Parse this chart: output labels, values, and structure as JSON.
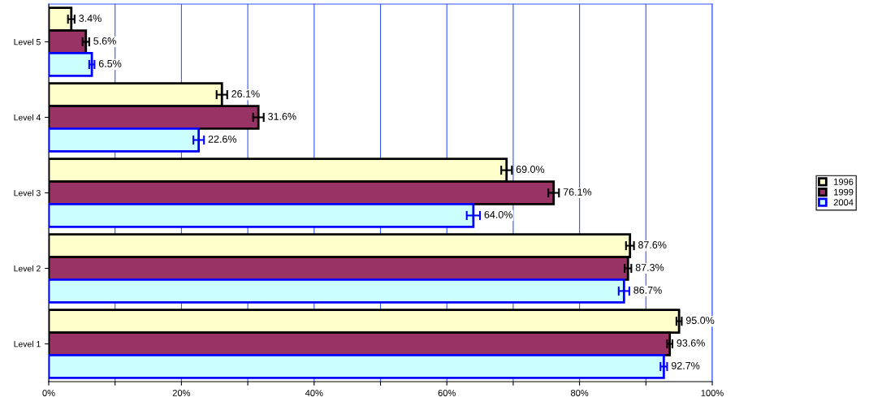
{
  "chart_data": {
    "type": "bar",
    "orientation": "horizontal",
    "categories": [
      "Level 5",
      "Level 4",
      "Level 3",
      "Level 2",
      "Level 1"
    ],
    "series": [
      {
        "name": "1996",
        "color": "#ffffcc",
        "values": [
          3.4,
          26.1,
          69.0,
          87.6,
          95.0
        ],
        "errors": [
          0.5,
          0.8,
          0.8,
          0.6,
          0.4
        ],
        "value_labels": [
          "3.4%",
          "26.1%",
          "69.0%",
          "87.6%",
          "95.0%"
        ]
      },
      {
        "name": "1999",
        "color": "#993366",
        "values": [
          5.6,
          31.6,
          76.1,
          87.3,
          93.6
        ],
        "errors": [
          0.5,
          0.8,
          0.8,
          0.5,
          0.4
        ],
        "value_labels": [
          "5.6%",
          "31.6%",
          "76.1%",
          "87.3%",
          "93.6%"
        ]
      },
      {
        "name": "2004",
        "color": "#ccffff",
        "values": [
          6.5,
          22.6,
          64.0,
          86.7,
          92.7
        ],
        "errors": [
          0.4,
          0.8,
          1.0,
          0.8,
          0.5
        ],
        "value_labels": [
          "6.5%",
          "22.6%",
          "64.0%",
          "86.7%",
          "92.7%"
        ]
      }
    ],
    "xlim": [
      0,
      100
    ],
    "xticks": [
      {
        "value": 0,
        "label": "0%"
      },
      {
        "value": 10,
        "label": null
      },
      {
        "value": 20,
        "label": "20%"
      },
      {
        "value": 30,
        "label": null
      },
      {
        "value": 40,
        "label": "40%"
      },
      {
        "value": 50,
        "label": null
      },
      {
        "value": 60,
        "label": "60%"
      },
      {
        "value": 70,
        "label": null
      },
      {
        "value": 80,
        "label": "80%"
      },
      {
        "value": 90,
        "label": null
      },
      {
        "value": 100,
        "label": "100%"
      }
    ],
    "grid": "x",
    "legend": "right"
  }
}
